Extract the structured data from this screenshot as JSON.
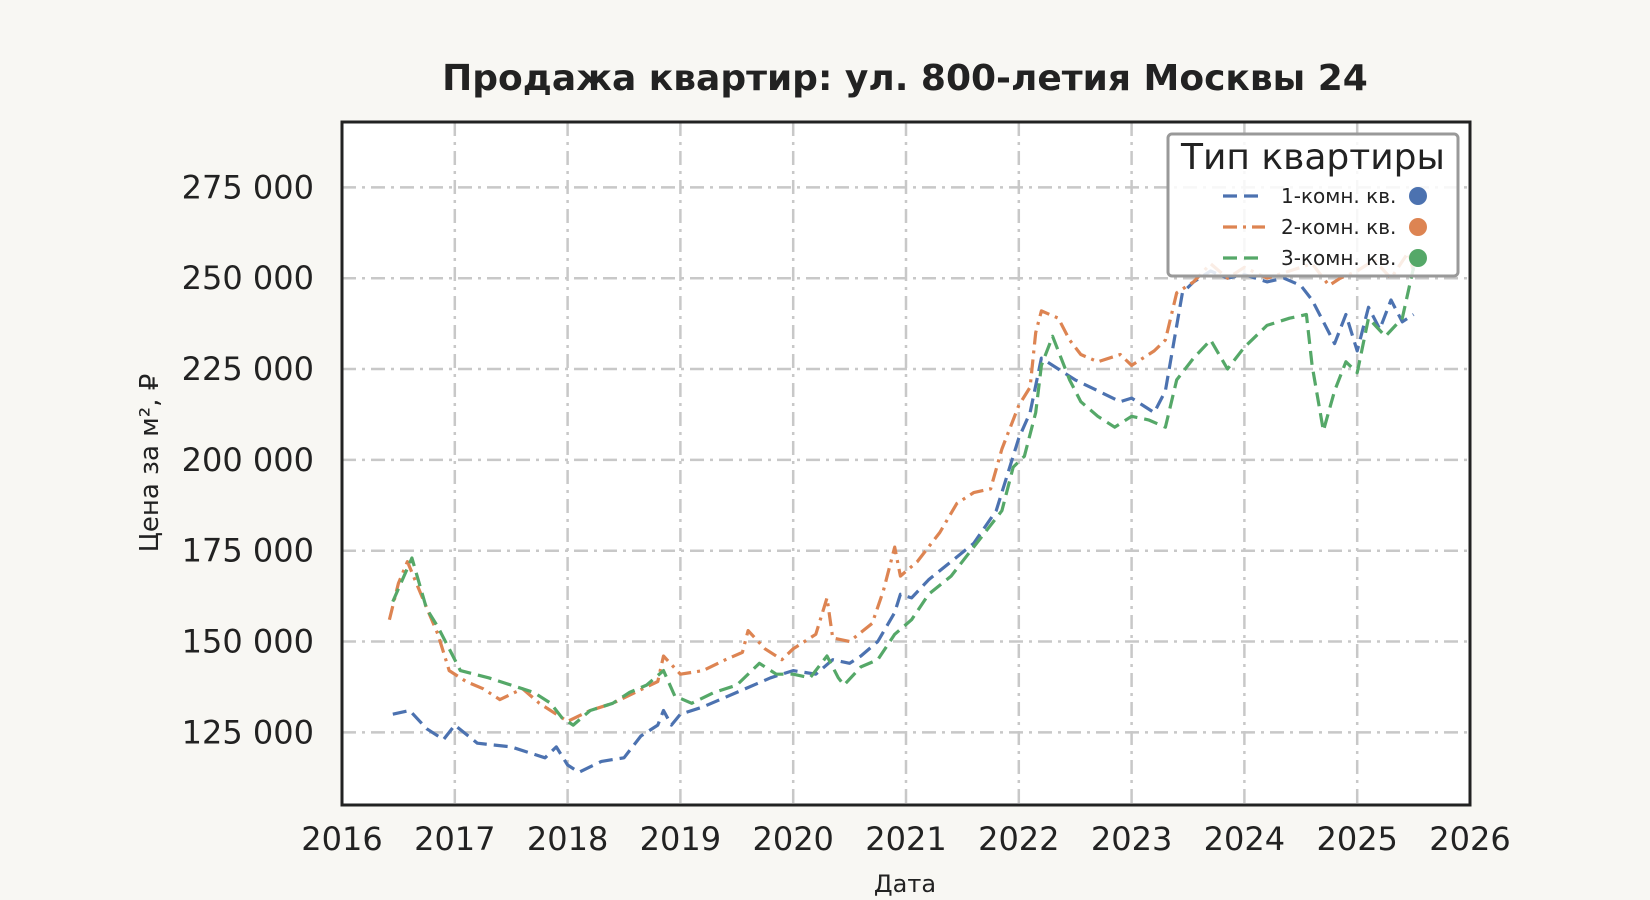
{
  "chart_data": {
    "type": "line",
    "title": "Продажа квартир: ул. 800-летия Москвы 24",
    "xlabel": "Дата",
    "ylabel": "Цена за м², ₽",
    "xlim": [
      2016,
      2026
    ],
    "ylim": [
      105000,
      293000
    ],
    "x_ticks": [
      "2016",
      "2017",
      "2018",
      "2019",
      "2020",
      "2021",
      "2022",
      "2023",
      "2024",
      "2025",
      "2026"
    ],
    "y_ticks": [
      {
        "value": 125000,
        "label": "125 000"
      },
      {
        "value": 150000,
        "label": "150 000"
      },
      {
        "value": 175000,
        "label": "175 000"
      },
      {
        "value": 200000,
        "label": "200 000"
      },
      {
        "value": 225000,
        "label": "225 000"
      },
      {
        "value": 250000,
        "label": "250 000"
      },
      {
        "value": 275000,
        "label": "275 000"
      }
    ],
    "grid": true,
    "legend": {
      "title": "Тип квартиры",
      "position": "top-right"
    },
    "series": [
      {
        "name": "1-комн. кв.",
        "color": "#4c72b0",
        "dash": "dashed",
        "points": [
          [
            2016.45,
            130000
          ],
          [
            2016.6,
            131000
          ],
          [
            2016.75,
            126000
          ],
          [
            2016.9,
            123000
          ],
          [
            2017.0,
            127000
          ],
          [
            2017.2,
            122000
          ],
          [
            2017.5,
            121000
          ],
          [
            2017.8,
            118000
          ],
          [
            2017.9,
            121000
          ],
          [
            2018.0,
            116000
          ],
          [
            2018.1,
            114000
          ],
          [
            2018.3,
            117000
          ],
          [
            2018.5,
            118000
          ],
          [
            2018.65,
            124000
          ],
          [
            2018.8,
            127000
          ],
          [
            2018.85,
            131000
          ],
          [
            2018.92,
            127000
          ],
          [
            2019.0,
            130000
          ],
          [
            2019.2,
            132000
          ],
          [
            2019.5,
            136000
          ],
          [
            2019.8,
            140000
          ],
          [
            2020.0,
            142000
          ],
          [
            2020.2,
            141000
          ],
          [
            2020.35,
            145000
          ],
          [
            2020.5,
            144000
          ],
          [
            2020.6,
            146000
          ],
          [
            2020.75,
            150000
          ],
          [
            2020.9,
            158000
          ],
          [
            2020.95,
            163000
          ],
          [
            2021.05,
            162000
          ],
          [
            2021.2,
            167000
          ],
          [
            2021.4,
            172000
          ],
          [
            2021.6,
            177000
          ],
          [
            2021.8,
            186000
          ],
          [
            2021.9,
            196000
          ],
          [
            2022.0,
            206000
          ],
          [
            2022.1,
            213000
          ],
          [
            2022.2,
            228000
          ],
          [
            2022.35,
            225000
          ],
          [
            2022.5,
            222000
          ],
          [
            2022.7,
            219000
          ],
          [
            2022.9,
            216000
          ],
          [
            2023.0,
            217000
          ],
          [
            2023.2,
            213000
          ],
          [
            2023.3,
            219000
          ],
          [
            2023.45,
            246000
          ],
          [
            2023.55,
            249000
          ],
          [
            2023.7,
            252000
          ],
          [
            2023.85,
            250000
          ],
          [
            2024.0,
            251000
          ],
          [
            2024.2,
            249000
          ],
          [
            2024.35,
            250000
          ],
          [
            2024.5,
            248000
          ],
          [
            2024.6,
            244000
          ],
          [
            2024.7,
            238000
          ],
          [
            2024.8,
            232000
          ],
          [
            2024.9,
            240000
          ],
          [
            2025.0,
            230000
          ],
          [
            2025.1,
            242000
          ],
          [
            2025.2,
            236000
          ],
          [
            2025.3,
            244000
          ],
          [
            2025.4,
            238000
          ],
          [
            2025.5,
            240000
          ]
        ]
      },
      {
        "name": "2-комн. кв.",
        "color": "#dd8452",
        "dash": "dashdot",
        "points": [
          [
            2016.42,
            156000
          ],
          [
            2016.5,
            166000
          ],
          [
            2016.58,
            172000
          ],
          [
            2016.7,
            163000
          ],
          [
            2016.85,
            152000
          ],
          [
            2016.95,
            142000
          ],
          [
            2017.1,
            139000
          ],
          [
            2017.25,
            137000
          ],
          [
            2017.4,
            134000
          ],
          [
            2017.6,
            137000
          ],
          [
            2017.75,
            133000
          ],
          [
            2017.9,
            130000
          ],
          [
            2018.0,
            128000
          ],
          [
            2018.2,
            131000
          ],
          [
            2018.4,
            133000
          ],
          [
            2018.6,
            136000
          ],
          [
            2018.8,
            139000
          ],
          [
            2018.85,
            146000
          ],
          [
            2019.0,
            141000
          ],
          [
            2019.2,
            142000
          ],
          [
            2019.4,
            145000
          ],
          [
            2019.55,
            147000
          ],
          [
            2019.6,
            153000
          ],
          [
            2019.75,
            148000
          ],
          [
            2019.9,
            145000
          ],
          [
            2020.0,
            148000
          ],
          [
            2020.2,
            152000
          ],
          [
            2020.3,
            162000
          ],
          [
            2020.35,
            151000
          ],
          [
            2020.5,
            150000
          ],
          [
            2020.7,
            155000
          ],
          [
            2020.8,
            164000
          ],
          [
            2020.9,
            176000
          ],
          [
            2020.95,
            168000
          ],
          [
            2021.1,
            172000
          ],
          [
            2021.3,
            180000
          ],
          [
            2021.45,
            188000
          ],
          [
            2021.6,
            191000
          ],
          [
            2021.75,
            192000
          ],
          [
            2021.85,
            203000
          ],
          [
            2022.0,
            215000
          ],
          [
            2022.1,
            220000
          ],
          [
            2022.15,
            235000
          ],
          [
            2022.2,
            241000
          ],
          [
            2022.35,
            239000
          ],
          [
            2022.45,
            233000
          ],
          [
            2022.55,
            229000
          ],
          [
            2022.7,
            227000
          ],
          [
            2022.9,
            229000
          ],
          [
            2023.0,
            226000
          ],
          [
            2023.2,
            230000
          ],
          [
            2023.3,
            233000
          ],
          [
            2023.4,
            246000
          ],
          [
            2023.55,
            249000
          ],
          [
            2023.7,
            254000
          ],
          [
            2023.85,
            250000
          ],
          [
            2024.0,
            253000
          ],
          [
            2024.2,
            250000
          ],
          [
            2024.4,
            252000
          ],
          [
            2024.6,
            254000
          ],
          [
            2024.75,
            248000
          ],
          [
            2024.85,
            250000
          ],
          [
            2025.0,
            252000
          ],
          [
            2025.15,
            255000
          ],
          [
            2025.3,
            250000
          ],
          [
            2025.45,
            257000
          ],
          [
            2025.5,
            252000
          ]
        ]
      },
      {
        "name": "3-комн. кв.",
        "color": "#55a868",
        "dash": "dashed",
        "points": [
          [
            2016.45,
            161000
          ],
          [
            2016.55,
            168000
          ],
          [
            2016.62,
            173000
          ],
          [
            2016.75,
            159000
          ],
          [
            2016.85,
            154000
          ],
          [
            2016.95,
            148000
          ],
          [
            2017.05,
            142000
          ],
          [
            2017.3,
            140000
          ],
          [
            2017.5,
            138000
          ],
          [
            2017.7,
            136000
          ],
          [
            2017.85,
            133000
          ],
          [
            2017.95,
            129000
          ],
          [
            2018.05,
            127000
          ],
          [
            2018.2,
            131000
          ],
          [
            2018.4,
            133000
          ],
          [
            2018.55,
            136000
          ],
          [
            2018.7,
            138000
          ],
          [
            2018.85,
            142000
          ],
          [
            2018.95,
            135000
          ],
          [
            2019.1,
            133000
          ],
          [
            2019.3,
            136000
          ],
          [
            2019.5,
            138000
          ],
          [
            2019.7,
            144000
          ],
          [
            2019.85,
            141000
          ],
          [
            2020.0,
            141000
          ],
          [
            2020.15,
            140000
          ],
          [
            2020.3,
            146000
          ],
          [
            2020.4,
            140000
          ],
          [
            2020.45,
            138000
          ],
          [
            2020.6,
            143000
          ],
          [
            2020.75,
            145000
          ],
          [
            2020.9,
            152000
          ],
          [
            2021.05,
            156000
          ],
          [
            2021.2,
            163000
          ],
          [
            2021.4,
            168000
          ],
          [
            2021.55,
            174000
          ],
          [
            2021.7,
            180000
          ],
          [
            2021.85,
            186000
          ],
          [
            2021.95,
            198000
          ],
          [
            2022.05,
            201000
          ],
          [
            2022.15,
            213000
          ],
          [
            2022.2,
            226000
          ],
          [
            2022.3,
            234000
          ],
          [
            2022.45,
            222000
          ],
          [
            2022.55,
            216000
          ],
          [
            2022.7,
            212000
          ],
          [
            2022.85,
            209000
          ],
          [
            2023.0,
            212000
          ],
          [
            2023.15,
            211000
          ],
          [
            2023.3,
            209000
          ],
          [
            2023.4,
            222000
          ],
          [
            2023.55,
            228000
          ],
          [
            2023.7,
            233000
          ],
          [
            2023.85,
            225000
          ],
          [
            2024.0,
            231000
          ],
          [
            2024.2,
            237000
          ],
          [
            2024.4,
            239000
          ],
          [
            2024.55,
            240000
          ],
          [
            2024.6,
            226000
          ],
          [
            2024.7,
            208000
          ],
          [
            2024.8,
            219000
          ],
          [
            2024.9,
            227000
          ],
          [
            2025.0,
            224000
          ],
          [
            2025.1,
            239000
          ],
          [
            2025.25,
            234000
          ],
          [
            2025.4,
            239000
          ],
          [
            2025.5,
            253000
          ]
        ]
      }
    ]
  }
}
